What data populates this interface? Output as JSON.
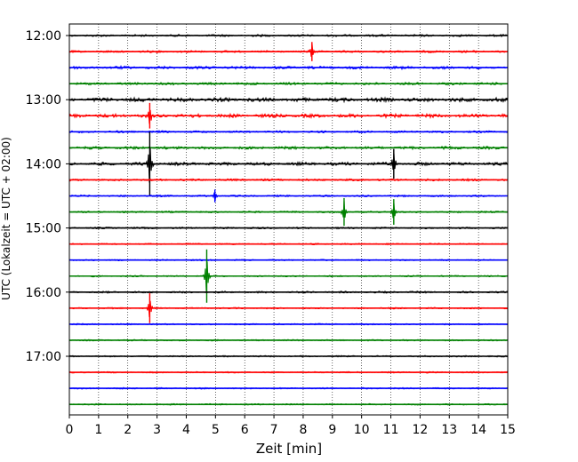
{
  "chart_data": {
    "type": "line",
    "title": "",
    "xlabel": "Zeit  [min]",
    "ylabel": "UTC (Lokalzeit = UTC + 02:00)",
    "xlim": [
      0,
      15
    ],
    "x_ticks": [
      "0",
      "1",
      "2",
      "3",
      "4",
      "5",
      "6",
      "7",
      "8",
      "9",
      "10",
      "11",
      "12",
      "13",
      "14",
      "15"
    ],
    "y_ticks": [
      "12:00",
      "13:00",
      "14:00",
      "15:00",
      "16:00",
      "17:00"
    ],
    "grid": "vertical dotted",
    "trace_interval_min": 15,
    "colors_cycle": [
      "#000000",
      "#ff0000",
      "#0000ff",
      "#008000"
    ],
    "series": [
      {
        "start": "12:00",
        "color": "#000000",
        "amplitude": 0.12
      },
      {
        "start": "12:15",
        "color": "#ff0000",
        "amplitude": 0.12
      },
      {
        "start": "12:30",
        "color": "#0000ff",
        "amplitude": 0.16
      },
      {
        "start": "12:45",
        "color": "#008000",
        "amplitude": 0.14
      },
      {
        "start": "13:00",
        "color": "#000000",
        "amplitude": 0.22
      },
      {
        "start": "13:15",
        "color": "#ff0000",
        "amplitude": 0.2
      },
      {
        "start": "13:30",
        "color": "#0000ff",
        "amplitude": 0.12
      },
      {
        "start": "13:45",
        "color": "#008000",
        "amplitude": 0.16
      },
      {
        "start": "14:00",
        "color": "#000000",
        "amplitude": 0.18
      },
      {
        "start": "14:15",
        "color": "#ff0000",
        "amplitude": 0.12
      },
      {
        "start": "14:30",
        "color": "#0000ff",
        "amplitude": 0.1
      },
      {
        "start": "14:45",
        "color": "#008000",
        "amplitude": 0.1
      },
      {
        "start": "15:00",
        "color": "#000000",
        "amplitude": 0.1
      },
      {
        "start": "15:15",
        "color": "#ff0000",
        "amplitude": 0.08
      },
      {
        "start": "15:30",
        "color": "#0000ff",
        "amplitude": 0.08
      },
      {
        "start": "15:45",
        "color": "#008000",
        "amplitude": 0.08
      },
      {
        "start": "16:00",
        "color": "#000000",
        "amplitude": 0.1
      },
      {
        "start": "16:15",
        "color": "#ff0000",
        "amplitude": 0.08
      },
      {
        "start": "16:30",
        "color": "#0000ff",
        "amplitude": 0.08
      },
      {
        "start": "16:45",
        "color": "#008000",
        "amplitude": 0.08
      },
      {
        "start": "17:00",
        "color": "#000000",
        "amplitude": 0.08
      },
      {
        "start": "17:15",
        "color": "#ff0000",
        "amplitude": 0.08
      },
      {
        "start": "17:30",
        "color": "#0000ff",
        "amplitude": 0.08
      },
      {
        "start": "17:45",
        "color": "#008000",
        "amplitude": 0.08
      }
    ],
    "events": [
      {
        "start": "12:15",
        "x_min": 8.3,
        "amplitude": 0.9
      },
      {
        "start": "13:15",
        "x_min": 2.75,
        "amplitude": 1.2
      },
      {
        "start": "14:00",
        "x_min": 2.75,
        "amplitude": 3.0
      },
      {
        "start": "14:00",
        "x_min": 11.1,
        "amplitude": 1.4
      },
      {
        "start": "14:30",
        "x_min": 4.98,
        "amplitude": 0.6
      },
      {
        "start": "14:45",
        "x_min": 9.4,
        "amplitude": 1.3
      },
      {
        "start": "14:45",
        "x_min": 11.1,
        "amplitude": 1.2
      },
      {
        "start": "15:45",
        "x_min": 4.7,
        "amplitude": 2.5
      },
      {
        "start": "16:15",
        "x_min": 2.75,
        "amplitude": 1.4
      }
    ]
  }
}
